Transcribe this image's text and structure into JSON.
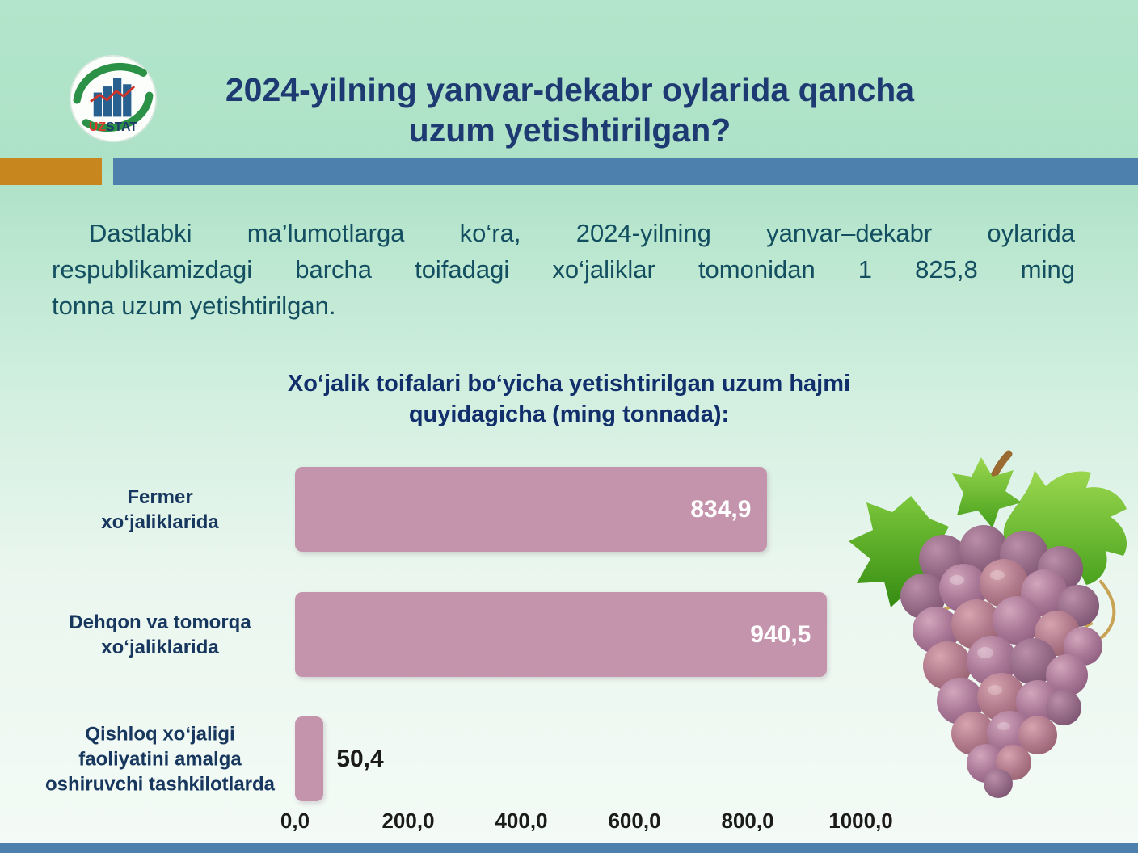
{
  "header": {
    "title": "2024-yilning yanvar-dekabr oylarida qancha\nuzum yetishtirilgan?",
    "logo_uz": "UZ",
    "logo_stat": "STAT"
  },
  "intro": {
    "lines": [
      "Dastlabki ma’lumotlarga ko‘ra, 2024-yilning yanvar–dekabr oylarida",
      "respublikamizdagi barcha toifadagi xo‘jaliklar tomonidan 1 825,8 ming",
      "tonna uzum yetishtirilgan."
    ]
  },
  "chart_data": {
    "type": "bar",
    "orientation": "horizontal",
    "title": "Xo‘jalik toifalari bo‘yicha yetishtirilgan uzum hajmi\nquyidagicha (ming tonnada):",
    "unit": "ming tonna",
    "categories": [
      "Fermer\nxo‘jaliklarida",
      "Dehqon va tomorqa\nxo‘jaliklarida",
      "Qishloq xo‘jaligi\nfaoliyatini amalga\noshiruvchi tashkilotlarda"
    ],
    "values": [
      834.9,
      940.5,
      50.4
    ],
    "value_labels": [
      "834,9",
      "940,5",
      "50,4"
    ],
    "x_ticks": [
      0,
      200,
      400,
      600,
      800,
      1000
    ],
    "x_tick_labels": [
      "0,0",
      "200,0",
      "400,0",
      "600,0",
      "800,0",
      "1000,0"
    ],
    "xlim": [
      0,
      1000
    ],
    "grid": false,
    "legend": null,
    "bar_color": "#c494ac"
  },
  "colors": {
    "background_top": "#b2e5cb",
    "background_bottom": "#f4fbf6",
    "accent_orange": "#c8861f",
    "accent_blue": "#4d80ad",
    "title": "#1e3a72",
    "body_text": "#134f60",
    "chart_title": "#112f6a",
    "category_label": "#17375e",
    "bar": "#c494ac",
    "value_in_bar": "#ffffff",
    "axis_label": "#1b1b1b",
    "footer": "#4d80ad"
  }
}
